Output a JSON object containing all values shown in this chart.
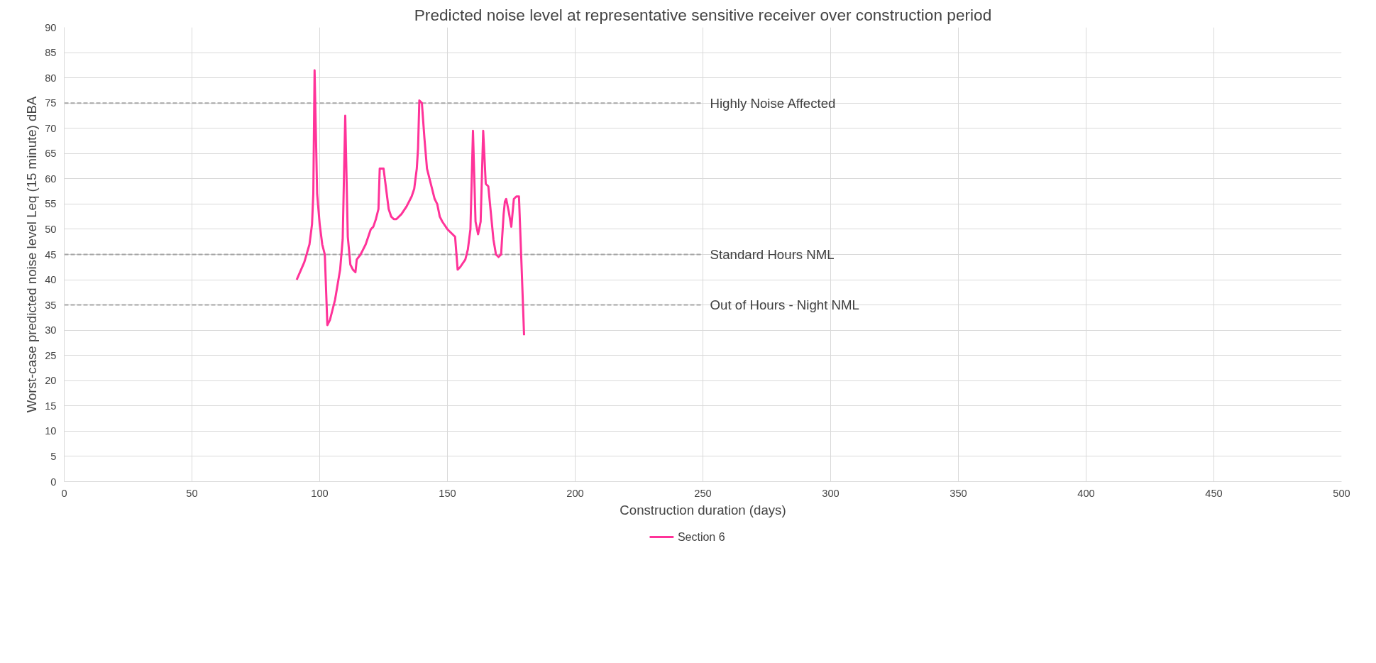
{
  "chart_data": {
    "type": "line",
    "title": "Predicted noise level at representative sensitive receiver over construction period",
    "xlabel": "Construction duration (days)",
    "ylabel": "Worst-case predicted noise level Leq (15 minute) dBA",
    "x": [
      91,
      94,
      96,
      97,
      97.5,
      98,
      99,
      100,
      101,
      102,
      103,
      104,
      106,
      108,
      109,
      110,
      111,
      112,
      113,
      114,
      114.5,
      116,
      118,
      120,
      121,
      122,
      123,
      123.5,
      125,
      126,
      127,
      128,
      129,
      130,
      132,
      134,
      136,
      137,
      138,
      138.5,
      139,
      140,
      141,
      142,
      144,
      145,
      146,
      147,
      148,
      150,
      152,
      153,
      154,
      155,
      157,
      158,
      159,
      160,
      161,
      162,
      163,
      164,
      165,
      166,
      168,
      169,
      170,
      171,
      172,
      172.5,
      173,
      174,
      175,
      176,
      177,
      178,
      179,
      180
    ],
    "series": [
      {
        "name": "Section 6",
        "color": "#ff3399",
        "values": [
          40,
          43.5,
          47,
          51,
          57,
          81.5,
          57,
          51,
          47,
          45,
          31,
          32,
          36,
          42,
          48,
          72.5,
          48.5,
          43,
          42,
          41.5,
          44,
          45,
          47,
          50,
          50.5,
          52,
          54,
          62,
          62,
          58,
          54,
          52.5,
          52,
          52,
          53,
          54.5,
          56.5,
          58,
          62,
          66,
          75.5,
          75,
          68,
          62,
          58,
          56,
          55,
          52.5,
          51.5,
          50,
          49,
          48.5,
          42,
          42.5,
          44,
          46,
          50,
          69.5,
          51.5,
          49,
          51.5,
          69.5,
          59,
          58.5,
          48,
          45,
          44.5,
          45,
          53,
          55.5,
          56,
          53.5,
          50.5,
          56,
          56.5,
          56.5,
          43,
          29
        ]
      }
    ],
    "xlim": [
      0,
      500
    ],
    "xticks": [
      0,
      50,
      100,
      150,
      200,
      250,
      300,
      350,
      400,
      450,
      500
    ],
    "ylim": [
      0,
      90
    ],
    "yticks": [
      0,
      5,
      10,
      15,
      20,
      25,
      30,
      35,
      40,
      45,
      50,
      55,
      60,
      65,
      70,
      75,
      80,
      85,
      90
    ],
    "ref_lines": [
      {
        "axis": "y",
        "value": 75,
        "label": "Highly Noise Affected",
        "color": "#a6a6a6",
        "line_style": "dashed"
      },
      {
        "axis": "y",
        "value": 45,
        "label": "Standard Hours NML",
        "color": "#a6a6a6",
        "line_style": "dashed"
      },
      {
        "axis": "y",
        "value": 35,
        "label": "Out of Hours - Night NML",
        "color": "#a6a6a6",
        "line_style": "dashed"
      }
    ],
    "grid": true,
    "legend": "bottom",
    "marker": "none",
    "line_style": "solid"
  }
}
